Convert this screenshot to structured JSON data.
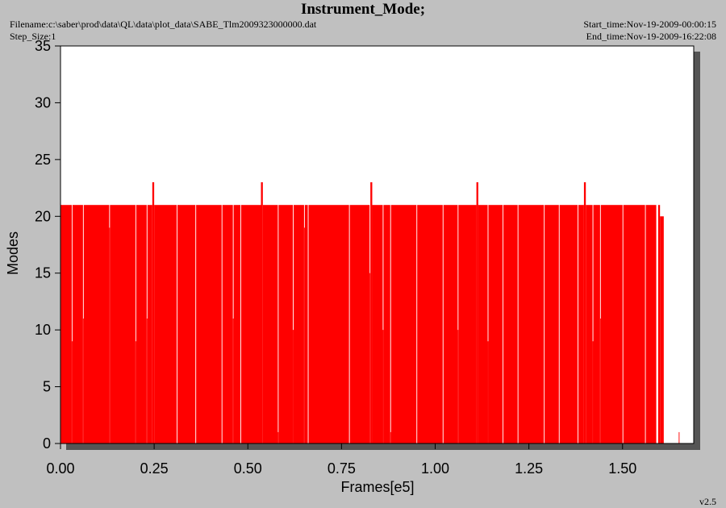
{
  "chart_data": {
    "type": "step-area",
    "title": "Instrument_Mode;",
    "filename": "Filename:c:\\saber\\prod\\data\\QL\\data\\plot_data\\SABE_Tlm2009323000000.dat",
    "step_size": "Step_Size:1",
    "start_time": "Start_time:Nov-19-2009-00:00:15",
    "end_time": "End_time:Nov-19-2009-16:22:08",
    "version": "v2.5",
    "x_label": "Frames[e5]",
    "y_label": "Modes",
    "color": "#ff0000",
    "x": [
      0,
      0.03,
      0.032,
      0.06,
      0.062,
      0.13,
      0.132,
      0.2,
      0.202,
      0.23,
      0.232,
      0.245,
      0.25,
      0.31,
      0.312,
      0.36,
      0.362,
      0.43,
      0.432,
      0.46,
      0.462,
      0.48,
      0.482,
      0.535,
      0.54,
      0.58,
      0.582,
      0.62,
      0.622,
      0.65,
      0.652,
      0.66,
      0.662,
      0.77,
      0.772,
      0.825,
      0.827,
      0.832,
      0.86,
      0.862,
      0.88,
      0.882,
      0.95,
      0.952,
      1.02,
      1.022,
      1.06,
      1.062,
      1.11,
      1.115,
      1.14,
      1.142,
      1.18,
      1.182,
      1.22,
      1.222,
      1.29,
      1.292,
      1.33,
      1.332,
      1.38,
      1.382,
      1.397,
      1.402,
      1.42,
      1.422,
      1.44,
      1.442,
      1.5,
      1.502,
      1.56,
      1.562,
      1.59,
      1.595,
      1.6,
      1.61,
      1.65,
      1.652
    ],
    "values": [
      21,
      9,
      21,
      11,
      21,
      19,
      21,
      9,
      21,
      11,
      21,
      23,
      21,
      0,
      21,
      0,
      21,
      0,
      21,
      11,
      21,
      0,
      21,
      23,
      21,
      1,
      21,
      10,
      21,
      19,
      21,
      0,
      21,
      0,
      21,
      15,
      23,
      21,
      10,
      21,
      1,
      21,
      0,
      21,
      0,
      21,
      10,
      21,
      23,
      21,
      9,
      21,
      0,
      21,
      0,
      21,
      0,
      21,
      0,
      21,
      0,
      21,
      23,
      21,
      9,
      21,
      11,
      21,
      0,
      21,
      0,
      21,
      0,
      21,
      20,
      0,
      1,
      0
    ],
    "xlim": [
      0,
      1.69
    ],
    "ylim": [
      0,
      35
    ],
    "xticks": [
      {
        "value": 0,
        "label": "0.00"
      },
      {
        "value": 0.25,
        "label": "0.25"
      },
      {
        "value": 0.5,
        "label": "0.50"
      },
      {
        "value": 0.75,
        "label": "0.75"
      },
      {
        "value": 1,
        "label": "1.00"
      },
      {
        "value": 1.25,
        "label": "1.25"
      },
      {
        "value": 1.5,
        "label": "1.50"
      }
    ],
    "yticks": [
      0,
      5,
      10,
      15,
      20,
      25,
      30,
      35
    ]
  }
}
